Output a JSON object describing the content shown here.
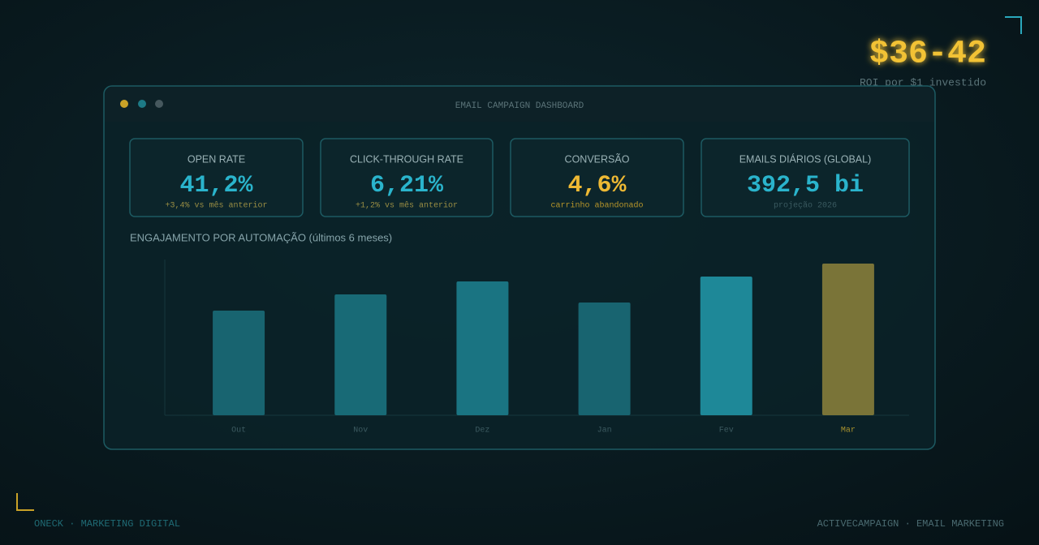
{
  "roi": {
    "value": "$36-42",
    "caption": "ROI por $1 investido"
  },
  "dashboard": {
    "title": "EMAIL CAMPAIGN DASHBOARD",
    "kpis": [
      {
        "label": "OPEN RATE",
        "value": "41,2%",
        "note": "+3,4% vs mês anterior"
      },
      {
        "label": "CLICK-THROUGH RATE",
        "value": "6,21%",
        "note": "+1,2% vs mês anterior"
      },
      {
        "label": "CONVERSÃO",
        "value": "4,6%",
        "note": "carrinho abandonado"
      },
      {
        "label": "EMAILS DIÁRIOS (GLOBAL)",
        "value": "392,5 bi",
        "note": "projeção 2026"
      }
    ]
  },
  "chart_data": {
    "type": "bar",
    "title": "ENGAJAMENTO POR AUTOMAÇÃO (últimos 6 meses)",
    "categories": [
      "Out",
      "Nov",
      "Dez",
      "Jan",
      "Fev",
      "Mar"
    ],
    "values": [
      129,
      149,
      165,
      139,
      171,
      187
    ],
    "colors": [
      "#186470",
      "#186a76",
      "#1a7482",
      "#186470",
      "#1e8898",
      "#7a7438"
    ],
    "label_colors": [
      "#3c5a60",
      "#3c5a60",
      "#3c5a60",
      "#3c5a60",
      "#3c5a60",
      "#a8922e"
    ],
    "ylim": [
      0,
      200
    ]
  },
  "footer": {
    "left": "ONECK · MARKETING DIGITAL",
    "right": "ACTIVECAMPAIGN · EMAIL MARKETING"
  }
}
